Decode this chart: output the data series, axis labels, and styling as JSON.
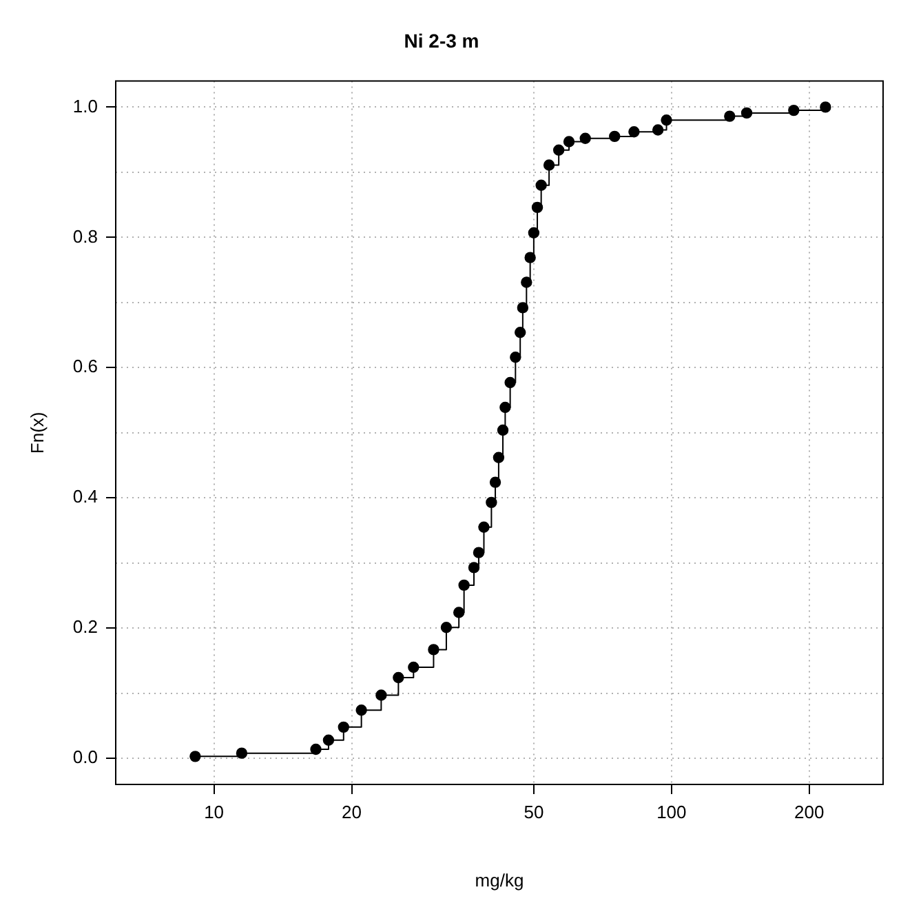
{
  "chart_data": {
    "type": "step",
    "title": "Ni 2-3 m",
    "xlabel": "mg/kg",
    "ylabel": "Fn(x)",
    "log": "x",
    "grid": true,
    "marker": "circle",
    "xlim": [
      6.1,
      290
    ],
    "ylim": [
      -0.04,
      1.04
    ],
    "xticks": [
      10,
      20,
      50,
      100,
      200
    ],
    "yticks": [
      {
        "value": 0,
        "label": "0.0"
      },
      {
        "value": 0.1,
        "label": null
      },
      {
        "value": 0.2,
        "label": "0.2"
      },
      {
        "value": 0.3,
        "label": null
      },
      {
        "value": 0.4,
        "label": "0.4"
      },
      {
        "value": 0.5,
        "label": null
      },
      {
        "value": 0.6,
        "label": "0.6"
      },
      {
        "value": 0.7,
        "label": null
      },
      {
        "value": 0.8,
        "label": "0.8"
      },
      {
        "value": 0.9,
        "label": null
      },
      {
        "value": 1,
        "label": "1.0"
      }
    ],
    "series": [
      {
        "color": "#000000",
        "x": [
          9.1,
          11.5,
          16.7,
          17.8,
          19.2,
          21.0,
          23.2,
          25.3,
          27.3,
          30.2,
          32.2,
          34.3,
          35.2,
          37.0,
          37.9,
          38.9,
          40.4,
          41.2,
          41.9,
          42.8,
          43.3,
          44.4,
          45.6,
          46.7,
          47.3,
          48.2,
          49.1,
          50.0,
          50.9,
          51.9,
          54.0,
          56.7,
          59.7,
          64.8,
          75.1,
          82.8,
          93.4,
          97.5,
          134,
          146,
          185,
          217
        ],
        "values": [
          0.003,
          0.008,
          0.014,
          0.028,
          0.048,
          0.074,
          0.097,
          0.124,
          0.14,
          0.167,
          0.201,
          0.224,
          0.266,
          0.293,
          0.316,
          0.355,
          0.393,
          0.424,
          0.462,
          0.504,
          0.539,
          0.577,
          0.616,
          0.654,
          0.692,
          0.731,
          0.769,
          0.807,
          0.846,
          0.88,
          0.911,
          0.934,
          0.947,
          0.952,
          0.955,
          0.962,
          0.965,
          0.98,
          0.986,
          0.991,
          0.995,
          1.0
        ]
      }
    ]
  }
}
